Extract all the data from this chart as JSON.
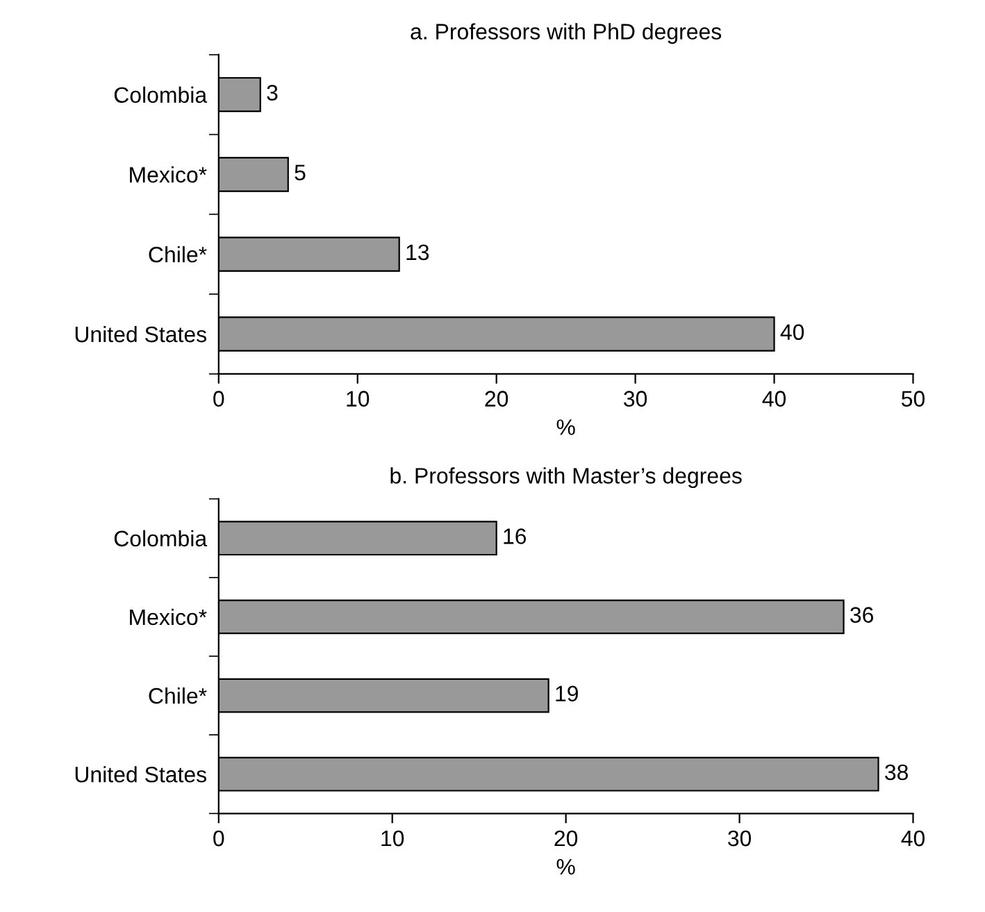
{
  "chart_data": [
    {
      "type": "bar",
      "orientation": "horizontal",
      "title": "a. Professors with PhD degrees",
      "xlabel": "%",
      "categories": [
        "Colombia",
        "Mexico*",
        "Chile*",
        "United States"
      ],
      "values": [
        3,
        5,
        13,
        40
      ],
      "color": "#999999",
      "xlim": [
        0,
        50
      ],
      "xticks": [
        0,
        10,
        20,
        30,
        40,
        50
      ],
      "data_labels": true
    },
    {
      "type": "bar",
      "orientation": "horizontal",
      "title": "b. Professors with Master’s degrees",
      "xlabel": "%",
      "categories": [
        "Colombia",
        "Mexico*",
        "Chile*",
        "United States"
      ],
      "values": [
        16,
        36,
        19,
        38
      ],
      "color": "#999999",
      "xlim": [
        0,
        40
      ],
      "xticks": [
        0,
        10,
        20,
        30,
        40
      ],
      "data_labels": true
    }
  ]
}
